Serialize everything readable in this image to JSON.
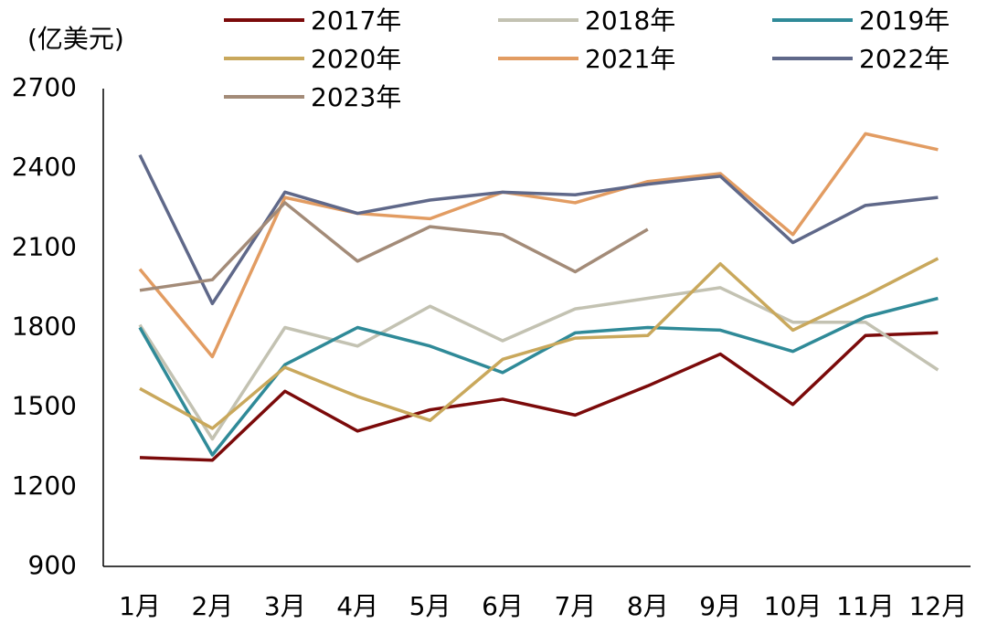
{
  "chart_data": {
    "type": "line",
    "y_label": "(亿美元)",
    "categories": [
      "1月",
      "2月",
      "3月",
      "4月",
      "5月",
      "6月",
      "7月",
      "8月",
      "9月",
      "10月",
      "11月",
      "12月"
    ],
    "ylim": [
      900,
      2700
    ],
    "yticks": [
      900,
      1200,
      1500,
      1800,
      2100,
      2400,
      2700
    ],
    "series": [
      {
        "name": "2017年",
        "color": "#7b0a0a",
        "values": [
          1310,
          1300,
          1560,
          1410,
          1490,
          1530,
          1470,
          1580,
          1700,
          1510,
          1770,
          1780
        ]
      },
      {
        "name": "2018年",
        "color": "#c3c2b2",
        "values": [
          1810,
          1380,
          1800,
          1730,
          1880,
          1750,
          1870,
          1910,
          1950,
          1820,
          1820,
          1640
        ]
      },
      {
        "name": "2019年",
        "color": "#2f8a98",
        "values": [
          1800,
          1320,
          1660,
          1800,
          1730,
          1630,
          1780,
          1800,
          1790,
          1710,
          1840,
          1910
        ]
      },
      {
        "name": "2020年",
        "color": "#c9a85c",
        "values": [
          1570,
          1420,
          1650,
          1540,
          1450,
          1680,
          1760,
          1770,
          2040,
          1790,
          1920,
          2060
        ]
      },
      {
        "name": "2021年",
        "color": "#e29c62",
        "values": [
          2020,
          1690,
          2290,
          2230,
          2210,
          2310,
          2270,
          2350,
          2380,
          2150,
          2530,
          2470
        ]
      },
      {
        "name": "2022年",
        "color": "#5f6889",
        "values": [
          2450,
          1890,
          2310,
          2230,
          2280,
          2310,
          2300,
          2340,
          2370,
          2120,
          2260,
          2290
        ]
      },
      {
        "name": "2023年",
        "color": "#a38b78",
        "values": [
          1940,
          1980,
          2270,
          2050,
          2180,
          2150,
          2010,
          2170,
          null,
          null,
          null,
          null
        ]
      }
    ]
  }
}
